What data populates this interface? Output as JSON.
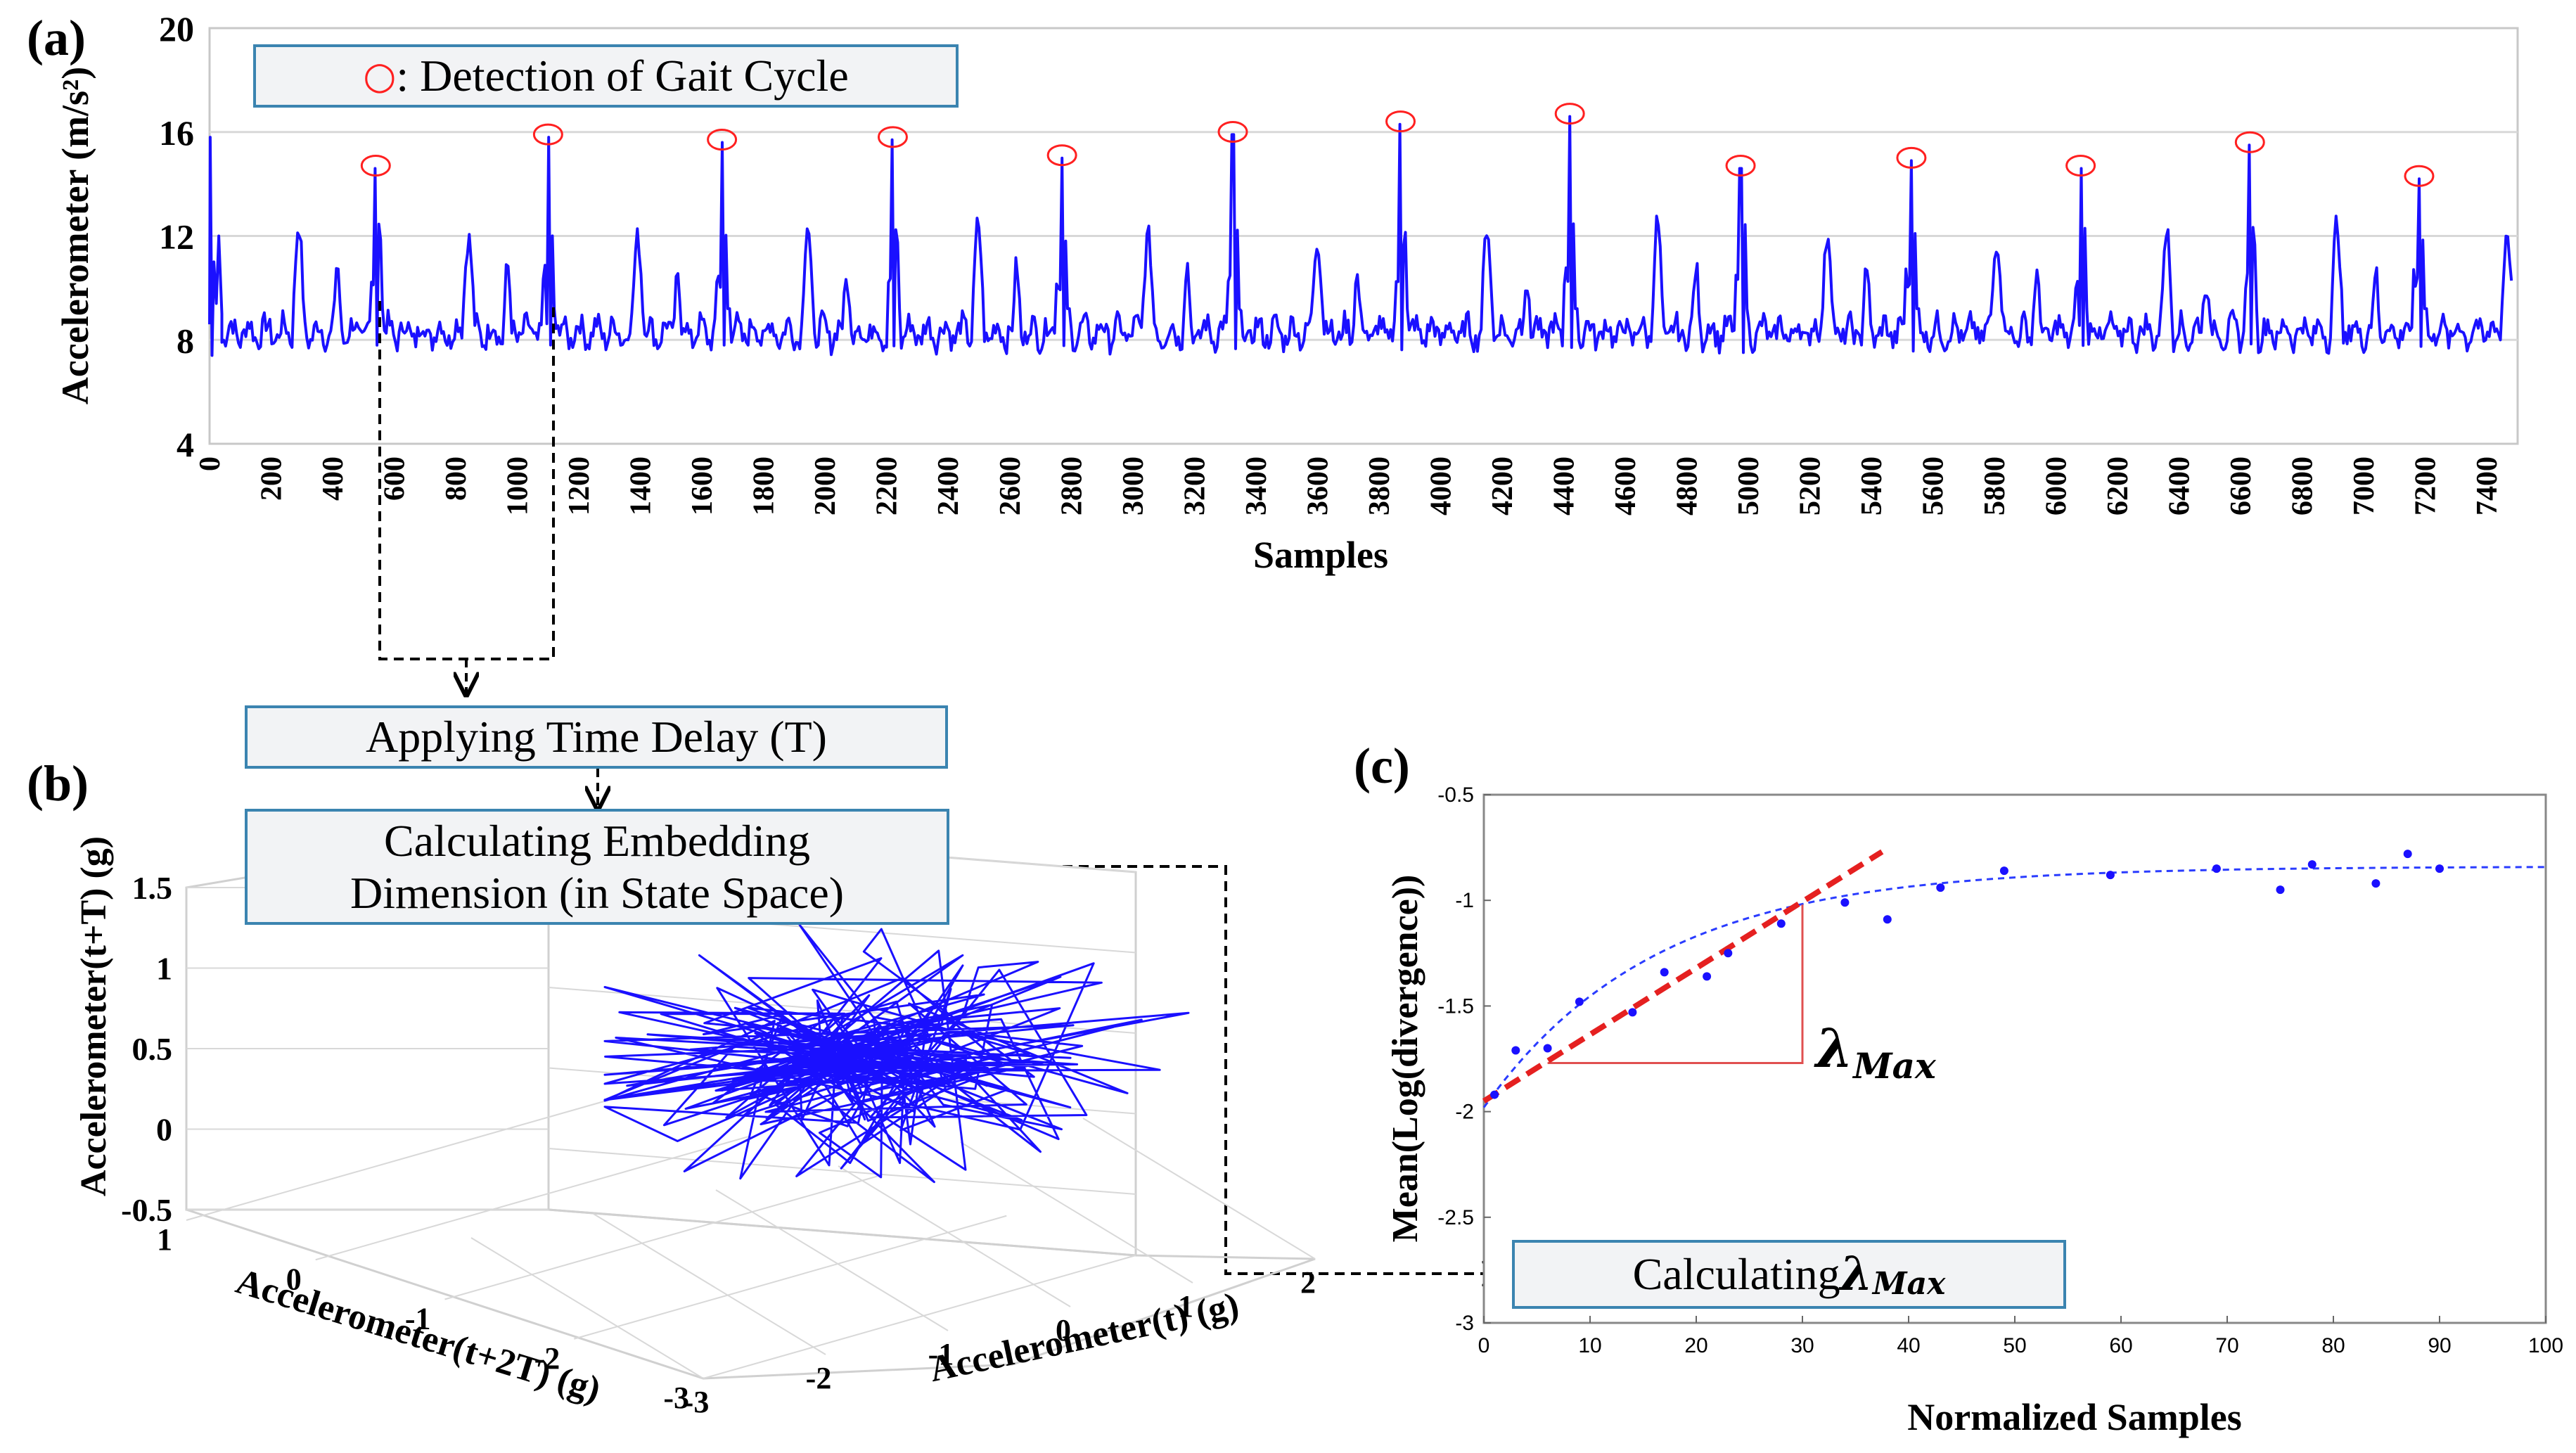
{
  "labels": {
    "a": "(a)",
    "b": "(b)",
    "c": "(c)"
  },
  "boxes": {
    "legend_symbol": "○",
    "legend": ": Detection of Gait Cycle",
    "time_delay": "Applying Time Delay (T)",
    "embed_line1": "Calculating Embedding",
    "embed_line2": "Dimension (in State Space)",
    "calc_lambda": "Calculating ",
    "lambda_symbol": "λ",
    "lambda_sub": "Max"
  },
  "colors": {
    "signal": "#1a10ff",
    "marker": "#ff2020",
    "fit": "#e52020",
    "box_border": "#3b84b0",
    "box_fill": "#f2f3f5",
    "grid": "#d8d8d8"
  },
  "chart_data": [
    {
      "id": "a",
      "type": "line",
      "title": "",
      "xlabel": "Samples",
      "ylabel": "Accelerometer (m/s²)",
      "xlim": [
        0,
        7500
      ],
      "ylim": [
        4,
        20
      ],
      "yticks": [
        "4",
        "8",
        "12",
        "16",
        "20"
      ],
      "xticks": [
        "0",
        "200",
        "400",
        "600",
        "800",
        "1000",
        "1200",
        "1400",
        "1600",
        "1800",
        "2000",
        "2200",
        "2400",
        "2600",
        "2800",
        "3000",
        "3200",
        "3400",
        "3600",
        "3800",
        "4000",
        "4200",
        "4400",
        "4600",
        "4800",
        "5000",
        "5200",
        "5400",
        "5600",
        "5800",
        "6000",
        "6200",
        "6400",
        "6600",
        "6800",
        "7000",
        "7200",
        "7400"
      ],
      "gait_peaks": [
        {
          "x": 540,
          "y": 14.6
        },
        {
          "x": 1100,
          "y": 15.8
        },
        {
          "x": 1665,
          "y": 15.6
        },
        {
          "x": 2220,
          "y": 15.7
        },
        {
          "x": 2770,
          "y": 15.0
        },
        {
          "x": 3325,
          "y": 15.9
        },
        {
          "x": 3870,
          "y": 16.3
        },
        {
          "x": 4420,
          "y": 16.6
        },
        {
          "x": 4975,
          "y": 14.6
        },
        {
          "x": 5530,
          "y": 14.9
        },
        {
          "x": 6080,
          "y": 14.6
        },
        {
          "x": 6630,
          "y": 15.5
        },
        {
          "x": 7180,
          "y": 14.2
        }
      ],
      "baseline_low": 8.3,
      "secondary_peak": 12.4
    },
    {
      "id": "b",
      "type": "line",
      "title": "",
      "xlabel": "Accelerometer(t) (g)",
      "ylabel": "Accelerometer(t+T) (g)",
      "zlabel": "Accelerometer(t+2T) (g)",
      "vticks": [
        "-0.5",
        "0",
        "0.5",
        "1",
        "1.5"
      ],
      "tticks": [
        "-3",
        "-2",
        "-1",
        "0",
        "1",
        "2"
      ],
      "t2ticks": [
        "-3",
        "-2",
        "-1",
        "0",
        "1"
      ],
      "vlim": [
        -0.5,
        1.5
      ],
      "tlim": [
        -3,
        2
      ],
      "t2lim": [
        -3,
        1
      ]
    },
    {
      "id": "c",
      "type": "scatter",
      "title": "",
      "xlabel": "Normalized Samples",
      "ylabel": "Mean(Log(divergence))",
      "xlim": [
        0,
        100
      ],
      "ylim": [
        -3,
        -0.5
      ],
      "xticks": [
        "0",
        "10",
        "20",
        "30",
        "40",
        "50",
        "60",
        "70",
        "80",
        "90",
        "100"
      ],
      "yticks": [
        "-3",
        "-2.5",
        "-2",
        "-1.5",
        "-1",
        "-0.5"
      ],
      "points": [
        {
          "x": 1,
          "y": -1.92
        },
        {
          "x": 3,
          "y": -1.71
        },
        {
          "x": 6,
          "y": -1.7
        },
        {
          "x": 9,
          "y": -1.48
        },
        {
          "x": 14,
          "y": -1.53
        },
        {
          "x": 17,
          "y": -1.34
        },
        {
          "x": 21,
          "y": -1.36
        },
        {
          "x": 23,
          "y": -1.25
        },
        {
          "x": 28,
          "y": -1.11
        },
        {
          "x": 34,
          "y": -1.01
        },
        {
          "x": 38,
          "y": -1.09
        },
        {
          "x": 43,
          "y": -0.94
        },
        {
          "x": 49,
          "y": -0.86
        },
        {
          "x": 59,
          "y": -0.88
        },
        {
          "x": 69,
          "y": -0.85
        },
        {
          "x": 75,
          "y": -0.95
        },
        {
          "x": 78,
          "y": -0.83
        },
        {
          "x": 84,
          "y": -0.92
        },
        {
          "x": 87,
          "y": -0.78
        },
        {
          "x": 90,
          "y": -0.85
        }
      ],
      "linear_fit": {
        "x": [
          0,
          37.5
        ],
        "y": [
          -1.95,
          -0.77
        ]
      },
      "exp_fit": {
        "asymptote": -0.84,
        "start": -1.98,
        "rate": 0.062
      },
      "slope_triangle": {
        "x0": 6,
        "x1": 30,
        "y0": -1.77,
        "y1": -1.02
      },
      "annotation": "λMax"
    }
  ]
}
